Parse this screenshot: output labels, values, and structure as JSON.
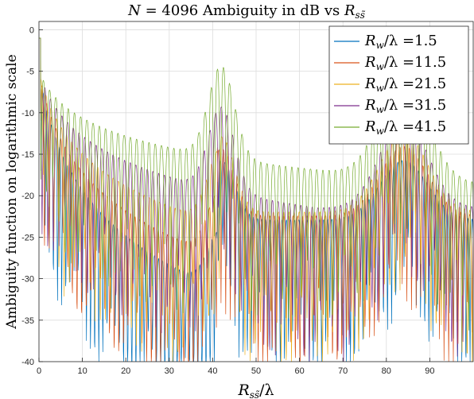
{
  "chart_data": {
    "type": "line",
    "title": "N = 4096 Ambiguity in dB vs R_{ss̃}",
    "xlabel": "R_{ss̃}/λ",
    "ylabel": "Ambiguity function on logarithmic scale",
    "xlim": [
      0,
      100
    ],
    "ylim": [
      -40,
      1
    ],
    "xticks": [
      0,
      10,
      20,
      30,
      40,
      50,
      60,
      70,
      80,
      90
    ],
    "yticks": [
      0,
      -5,
      -10,
      -15,
      -20,
      -25,
      -30,
      -35,
      -40
    ],
    "grid": true,
    "legend_position": "top-right",
    "series": [
      {
        "name": "R_w/λ =1.5",
        "color": "#0072BD",
        "Rw": 1.5
      },
      {
        "name": "R_w/λ =11.5",
        "color": "#D95319",
        "Rw": 11.5
      },
      {
        "name": "R_w/λ =21.5",
        "color": "#EDB120",
        "Rw": 21.5
      },
      {
        "name": "R_w/λ =31.5",
        "color": "#7E2F8E",
        "Rw": 31.5
      },
      {
        "name": "R_w/λ =41.5",
        "color": "#77AC30",
        "Rw": 41.5
      }
    ]
  },
  "title_text": {
    "n": "N",
    "eq": " = 4096 Ambiguity in dB vs ",
    "r": "R",
    "sub": "ss̃"
  },
  "axis_text": {
    "x_r": "R",
    "x_sub": "ss̃",
    "x_rest": "/λ",
    "y": "Ambiguity function on logarithmic scale"
  },
  "legend": [
    {
      "r": "R",
      "sub": "w",
      "rest": "/λ =1.5"
    },
    {
      "r": "R",
      "sub": "w",
      "rest": "/λ =11.5"
    },
    {
      "r": "R",
      "sub": "w",
      "rest": "/λ =21.5"
    },
    {
      "r": "R",
      "sub": "w",
      "rest": "/λ =31.5"
    },
    {
      "r": "R",
      "sub": "w",
      "rest": "/λ =41.5"
    }
  ]
}
